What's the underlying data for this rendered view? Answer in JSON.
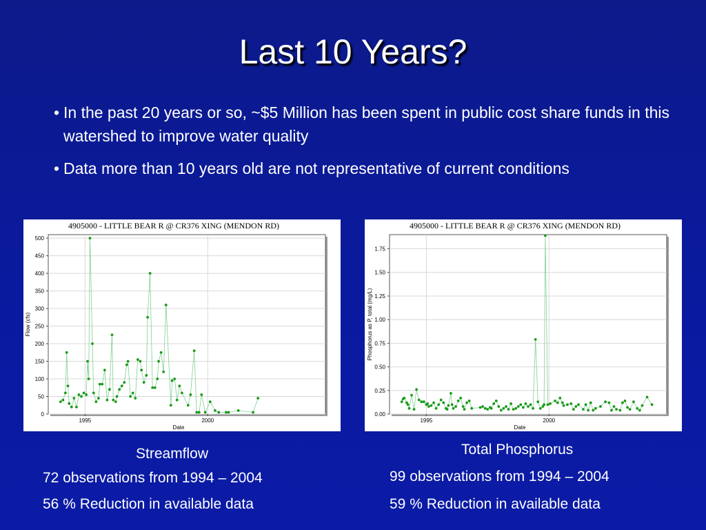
{
  "slide": {
    "title": "Last 10 Years?",
    "bullets": [
      "In the past 20 years or so, ~$5 Million has been spent in public cost share funds in this watershed to improve water quality",
      "Data more than 10 years old are not representative of current conditions"
    ],
    "bullet_glyph": "•"
  },
  "left_caption": {
    "title": "Streamflow",
    "observations": "72 observations from 1994 – 2004",
    "reduction": "56 % Reduction in available data"
  },
  "right_caption": {
    "title": "Total Phosphorus",
    "observations": "99 observations from 1994 – 2004",
    "reduction": "59 % Reduction in available data"
  },
  "colors": {
    "background": "#0c1aa0",
    "series": "#1a9a1a",
    "line": "#7fcf8f"
  },
  "chart_data": [
    {
      "type": "line",
      "title": "4905000 - LITTLE BEAR R @ CR376 XING (MENDON RD)",
      "xlabel": "Date",
      "ylabel": "Flow (cfs)",
      "xlim": [
        1993.5,
        2004.8
      ],
      "ylim": [
        0,
        510
      ],
      "xticks": [
        1995,
        2000
      ],
      "yticks": [
        0,
        50,
        100,
        150,
        200,
        250,
        300,
        350,
        400,
        450,
        500
      ],
      "grid": true,
      "x": [
        1994.0,
        1994.1,
        1994.2,
        1994.25,
        1994.3,
        1994.35,
        1994.45,
        1994.55,
        1994.65,
        1994.75,
        1994.85,
        1994.95,
        1995.05,
        1995.1,
        1995.15,
        1995.2,
        1995.3,
        1995.35,
        1995.45,
        1995.55,
        1995.6,
        1995.7,
        1995.8,
        1995.9,
        1996.0,
        1996.1,
        1996.15,
        1996.25,
        1996.3,
        1996.4,
        1996.5,
        1996.6,
        1996.7,
        1996.75,
        1996.85,
        1996.95,
        1997.05,
        1997.15,
        1997.25,
        1997.3,
        1997.4,
        1997.5,
        1997.55,
        1997.65,
        1997.75,
        1997.85,
        1997.95,
        1998.0,
        1998.1,
        1998.2,
        1998.3,
        1998.5,
        1998.55,
        1998.65,
        1998.75,
        1998.85,
        1998.95,
        1999.2,
        1999.3,
        1999.45,
        1999.55,
        1999.65,
        1999.75,
        1999.9,
        2000.1,
        2000.3,
        2000.45,
        2000.75,
        2000.85,
        2001.25,
        2001.85,
        2002.05
      ],
      "y": [
        35,
        40,
        60,
        175,
        80,
        30,
        20,
        45,
        20,
        55,
        50,
        60,
        55,
        150,
        100,
        500,
        200,
        60,
        35,
        45,
        85,
        85,
        125,
        40,
        70,
        225,
        40,
        35,
        50,
        70,
        80,
        90,
        140,
        150,
        50,
        60,
        45,
        155,
        150,
        125,
        90,
        110,
        275,
        400,
        75,
        75,
        100,
        150,
        175,
        120,
        310,
        25,
        95,
        100,
        40,
        80,
        60,
        25,
        55,
        180,
        5,
        5,
        55,
        5,
        35,
        10,
        5,
        5,
        5,
        10,
        5,
        45
      ]
    },
    {
      "type": "line",
      "title": "4905000 - LITTLE BEAR R @ CR376 XING (MENDON RD)",
      "xlabel": "Date",
      "ylabel": "Phosphorus as P, total (mg/L)",
      "xlim": [
        1993.5,
        2004.8
      ],
      "ylim": [
        0,
        1.9
      ],
      "xticks": [
        1995,
        2000
      ],
      "yticks": [
        0,
        0.25,
        0.5,
        0.75,
        1.0,
        1.25,
        1.5,
        1.75
      ],
      "ytick_labels": [
        "0.00",
        "0.25",
        "0.50",
        "0.75",
        "1.00",
        "1.25",
        "1.50",
        "1.75"
      ],
      "grid": true,
      "x": [
        1994.0,
        1994.05,
        1994.1,
        1994.2,
        1994.25,
        1994.3,
        1994.4,
        1994.5,
        1994.6,
        1994.7,
        1994.8,
        1994.9,
        1995.0,
        1995.05,
        1995.1,
        1995.2,
        1995.3,
        1995.4,
        1995.5,
        1995.6,
        1995.7,
        1995.8,
        1995.85,
        1995.9,
        1996.0,
        1996.05,
        1996.1,
        1996.2,
        1996.3,
        1996.4,
        1996.5,
        1996.55,
        1996.65,
        1996.75,
        1996.85,
        1997.2,
        1997.3,
        1997.4,
        1997.5,
        1997.6,
        1997.65,
        1997.75,
        1997.85,
        1997.95,
        1998.05,
        1998.15,
        1998.25,
        1998.35,
        1998.45,
        1998.55,
        1998.65,
        1998.75,
        1998.85,
        1998.95,
        1999.05,
        1999.15,
        1999.25,
        1999.35,
        1999.45,
        1999.55,
        1999.65,
        1999.75,
        1999.8,
        1999.85,
        1999.95,
        2000.05,
        2000.25,
        2000.35,
        2000.45,
        2000.55,
        2000.6,
        2000.75,
        2000.9,
        2001.0,
        2001.1,
        2001.2,
        2001.4,
        2001.5,
        2001.6,
        2001.7,
        2001.8,
        2001.9,
        2002.1,
        2002.3,
        2002.45,
        2002.55,
        2002.65,
        2002.75,
        2002.9,
        2003.0,
        2003.1,
        2003.2,
        2003.3,
        2003.45,
        2003.6,
        2003.7,
        2003.8,
        2004.0,
        2004.2
      ],
      "y": [
        0.13,
        0.16,
        0.17,
        0.12,
        0.1,
        0.06,
        0.2,
        0.05,
        0.26,
        0.15,
        0.13,
        0.13,
        0.1,
        0.11,
        0.08,
        0.09,
        0.12,
        0.06,
        0.1,
        0.15,
        0.12,
        0.06,
        0.05,
        0.09,
        0.22,
        0.1,
        0.06,
        0.08,
        0.14,
        0.17,
        0.08,
        0.05,
        0.12,
        0.14,
        0.06,
        0.07,
        0.08,
        0.06,
        0.05,
        0.07,
        0.06,
        0.11,
        0.14,
        0.08,
        0.04,
        0.06,
        0.08,
        0.05,
        0.11,
        0.05,
        0.06,
        0.08,
        0.1,
        0.07,
        0.11,
        0.08,
        0.1,
        0.06,
        0.79,
        0.13,
        0.06,
        0.08,
        0.1,
        1.89,
        0.1,
        0.11,
        0.14,
        0.12,
        0.17,
        0.12,
        0.09,
        0.1,
        0.11,
        0.05,
        0.08,
        0.1,
        0.05,
        0.1,
        0.04,
        0.12,
        0.04,
        0.06,
        0.08,
        0.13,
        0.12,
        0.04,
        0.08,
        0.05,
        0.04,
        0.12,
        0.14,
        0.07,
        0.05,
        0.13,
        0.06,
        0.04,
        0.09,
        0.18,
        0.1
      ]
    }
  ]
}
